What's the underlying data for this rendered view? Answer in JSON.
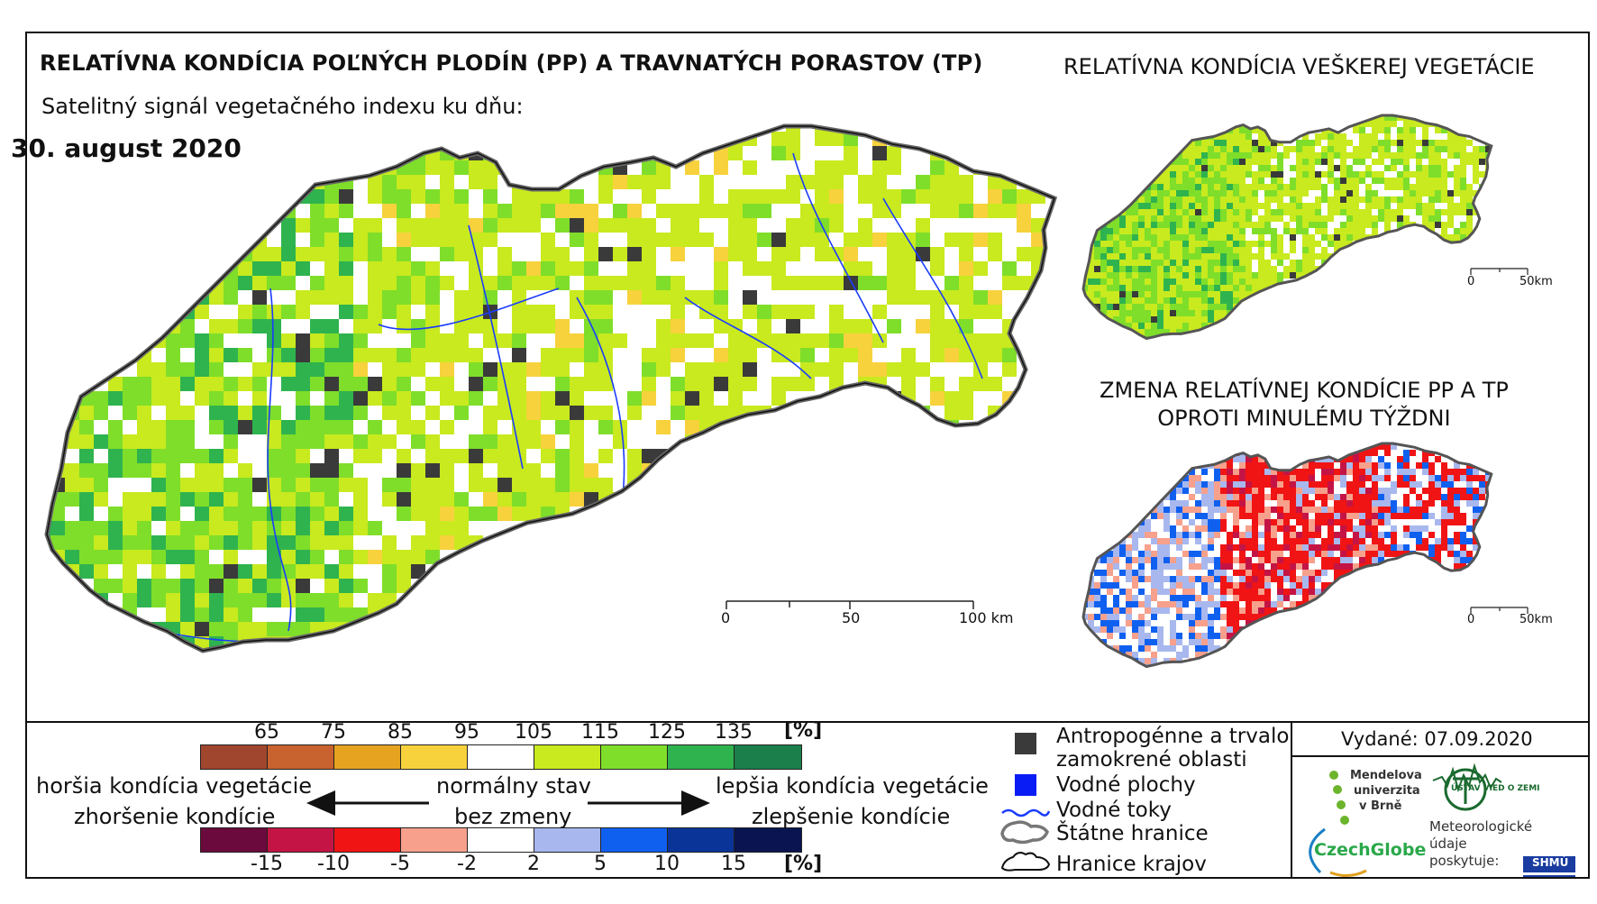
{
  "title": "RELATÍVNA KONDÍCIA POĽNÝCH PLODÍN (PP) A TRAVNATÝCH PORASTOV (TP)",
  "subtitle": "Satelitný signál vegetačného indexu ku dňu:",
  "date": "30. august 2020",
  "inset_top_title": "RELATÍVNA KONDÍCIA VEŠKEREJ VEGETÁCIE",
  "inset_bottom_title_line1": "ZMENA RELATÍVNEJ KONDÍCIE PP A TP",
  "inset_bottom_title_line2": "OPROTI MINULÉMU TÝŽDNI",
  "scalebar_main": {
    "labels": [
      "0",
      "50",
      "100 km"
    ]
  },
  "scalebar_inset": {
    "labels": [
      "0",
      "50km"
    ]
  },
  "legend": {
    "condition_ticks": [
      "65",
      "75",
      "85",
      "95",
      "105",
      "115",
      "125",
      "135"
    ],
    "condition_unit": "[%]",
    "condition_colors": [
      "#a0462e",
      "#c8622e",
      "#e6a320",
      "#f7d23c",
      "#ffffff",
      "#c8ea1e",
      "#7fde2a",
      "#2fb34e",
      "#1b7f4c"
    ],
    "change_ticks": [
      "-15",
      "-10",
      "-5",
      "-2",
      "2",
      "5",
      "10",
      "15"
    ],
    "change_unit": "[%]",
    "change_colors": [
      "#6b0a3c",
      "#c41445",
      "#f01414",
      "#f7a08c",
      "#ffffff",
      "#a8b8ee",
      "#1060f0",
      "#0a3498",
      "#0a1450"
    ],
    "worse_line1": "horšia kondícia vegetácie",
    "worse_line2": "zhoršenie kondície",
    "normal_line1": "normálny stav",
    "normal_line2": "bez zmeny",
    "better_line1": "lepšia kondícia vegetácie",
    "better_line2": "zlepšenie kondície"
  },
  "map_legend": {
    "anthropogenic_line1": "Antropogénne a trvalo",
    "anthropogenic_line2": "zamokrené oblasti",
    "water_bodies": "Vodné plochy",
    "rivers": "Vodné toky",
    "state_border": "Štátne hranice",
    "region_border": "Hranice krajov"
  },
  "issued": "Vydané: 07.09.2020",
  "logos": {
    "mendel_line1": "Mendelova",
    "mendel_line2": "univerzita",
    "mendel_line3": "v Brně",
    "czechglobe": "CzechGlobe",
    "usvz": "ÚSTAV VIED O ZEMI",
    "meteo_line1": "Meteorologické",
    "meteo_line2": "údaje",
    "meteo_line3": "poskytuje:",
    "shmu": "SHMÚ"
  }
}
